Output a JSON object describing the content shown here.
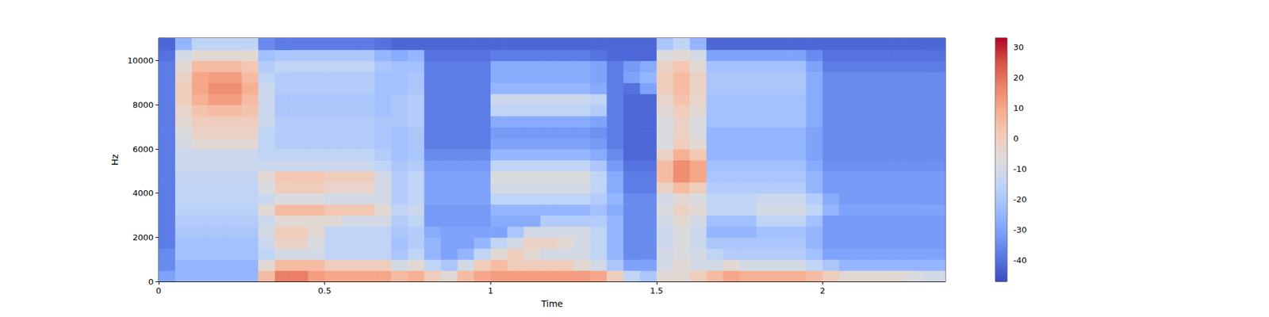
{
  "chart_data": {
    "type": "heatmap",
    "xlabel": "Time",
    "ylabel": "Hz",
    "xlim": [
      0,
      2.37
    ],
    "ylim": [
      0,
      11025
    ],
    "xticks": [
      0,
      0.5,
      1,
      1.5,
      2
    ],
    "yticks": [
      0,
      2000,
      4000,
      6000,
      8000,
      10000
    ],
    "time_edges": [
      0,
      0.05,
      0.1,
      0.15,
      0.2,
      0.25,
      0.3,
      0.35,
      0.4,
      0.45,
      0.5,
      0.55,
      0.6,
      0.65,
      0.7,
      0.75,
      0.8,
      0.85,
      0.9,
      0.95,
      1,
      1.05,
      1.1,
      1.15,
      1.2,
      1.25,
      1.3,
      1.35,
      1.4,
      1.45,
      1.5,
      1.55,
      1.6,
      1.65,
      1.7,
      1.75,
      1.8,
      1.85,
      1.9,
      1.95,
      2,
      2.05,
      2.1,
      2.15,
      2.2,
      2.25,
      2.3,
      2.37
    ],
    "freq_edges": [
      0,
      500,
      1000,
      1500,
      2000,
      2500,
      3000,
      3500,
      4000,
      4500,
      5000,
      5500,
      6000,
      6500,
      7000,
      7500,
      8000,
      8500,
      9000,
      9500,
      10000,
      10500,
      11025
    ],
    "cells": [
      [
        -30,
        -25,
        -25,
        -25,
        -25,
        -25,
        5,
        18,
        18,
        12,
        10,
        10,
        10,
        10,
        5,
        8,
        0,
        -5,
        5,
        10,
        12,
        12,
        12,
        12,
        12,
        12,
        10,
        0,
        -15,
        -20,
        -5,
        -5,
        0,
        5,
        10,
        8,
        8,
        8,
        8,
        5,
        0,
        -5,
        -5,
        -5,
        -5,
        -8,
        -10
      ],
      [
        -35,
        -25,
        -25,
        -25,
        -25,
        -25,
        -5,
        5,
        5,
        5,
        0,
        0,
        0,
        0,
        -10,
        -5,
        -15,
        -20,
        -10,
        0,
        5,
        0,
        0,
        0,
        0,
        -5,
        -10,
        -20,
        -30,
        -30,
        -10,
        -5,
        -10,
        -10,
        -5,
        -10,
        -10,
        -10,
        -10,
        -15,
        -20,
        -25,
        -25,
        -25,
        -25,
        -25,
        -25
      ],
      [
        -35,
        -22,
        -22,
        -22,
        -22,
        -22,
        -15,
        -10,
        -10,
        -10,
        -15,
        -15,
        -15,
        -15,
        -20,
        -15,
        -25,
        -30,
        -25,
        -15,
        -5,
        0,
        -5,
        -10,
        -10,
        -10,
        -15,
        -25,
        -35,
        -35,
        -10,
        -8,
        -10,
        -15,
        -18,
        -18,
        -18,
        -18,
        -18,
        -22,
        -30,
        -30,
        -30,
        -30,
        -30,
        -30,
        -30
      ],
      [
        -38,
        -22,
        -22,
        -22,
        -22,
        -22,
        -12,
        -2,
        -2,
        -8,
        -15,
        -15,
        -15,
        -15,
        -22,
        -18,
        -25,
        -30,
        -30,
        -25,
        -15,
        -10,
        -2,
        -2,
        -5,
        -10,
        -15,
        -25,
        -35,
        -35,
        -12,
        -8,
        -12,
        -20,
        -20,
        -20,
        -20,
        -20,
        -20,
        -25,
        -32,
        -32,
        -32,
        -32,
        -32,
        -32,
        -32
      ],
      [
        -38,
        -20,
        -20,
        -20,
        -20,
        -20,
        -10,
        0,
        0,
        -5,
        -15,
        -15,
        -15,
        -15,
        -20,
        -18,
        -28,
        -30,
        -30,
        -30,
        -30,
        -20,
        -10,
        -10,
        -10,
        -10,
        -15,
        -25,
        -35,
        -35,
        -12,
        -8,
        -12,
        -25,
        -25,
        -25,
        -22,
        -22,
        -22,
        -25,
        -32,
        -32,
        -32,
        -32,
        -32,
        -32,
        -32
      ],
      [
        -38,
        -18,
        -18,
        -18,
        -18,
        -18,
        -12,
        -5,
        -5,
        -5,
        -5,
        -10,
        -10,
        -10,
        -18,
        -15,
        -32,
        -32,
        -32,
        -32,
        -28,
        -28,
        -28,
        -18,
        -18,
        -18,
        -18,
        -25,
        -35,
        -35,
        -10,
        -5,
        -10,
        -22,
        -22,
        -22,
        -15,
        -15,
        -15,
        -22,
        -32,
        -32,
        -32,
        -32,
        -32,
        -32,
        -32
      ],
      [
        -38,
        -16,
        -16,
        -16,
        -16,
        -16,
        -5,
        5,
        5,
        5,
        2,
        2,
        2,
        -5,
        -15,
        -12,
        -32,
        -32,
        -32,
        -32,
        -25,
        -25,
        -25,
        -25,
        -25,
        -25,
        -22,
        -28,
        -35,
        -35,
        -8,
        -2,
        -5,
        -15,
        -15,
        -15,
        -10,
        -10,
        -10,
        -15,
        -25,
        -30,
        -30,
        -30,
        -30,
        -30,
        -30
      ],
      [
        -38,
        -15,
        -15,
        -15,
        -15,
        -15,
        -12,
        -8,
        -8,
        -8,
        -10,
        -10,
        -10,
        -10,
        -18,
        -15,
        -30,
        -30,
        -30,
        -30,
        -15,
        -15,
        -15,
        -15,
        -15,
        -15,
        -18,
        -25,
        -35,
        -35,
        -10,
        -5,
        -8,
        -15,
        -15,
        -15,
        -12,
        -12,
        -12,
        -18,
        -28,
        -32,
        -32,
        -32,
        -32,
        -32,
        -32
      ],
      [
        -38,
        -15,
        -15,
        -15,
        -15,
        -15,
        -8,
        0,
        0,
        0,
        -3,
        -3,
        -3,
        -10,
        -18,
        -15,
        -30,
        -30,
        -30,
        -30,
        -10,
        -10,
        -10,
        -10,
        -10,
        -10,
        -15,
        -28,
        -38,
        -38,
        -2,
        5,
        0,
        -18,
        -18,
        -18,
        -18,
        -18,
        -18,
        -25,
        -32,
        -32,
        -32,
        -32,
        -32,
        -32,
        -32
      ],
      [
        -38,
        -14,
        -14,
        -14,
        -14,
        -14,
        -5,
        2,
        2,
        2,
        0,
        0,
        0,
        -10,
        -18,
        -15,
        -30,
        -30,
        -30,
        -30,
        -8,
        -8,
        -8,
        -8,
        -8,
        -8,
        -15,
        -28,
        -38,
        -38,
        5,
        15,
        10,
        -20,
        -20,
        -20,
        -20,
        -20,
        -20,
        -25,
        -32,
        -32,
        -32,
        -32,
        -32,
        -32,
        -32
      ],
      [
        -38,
        -12,
        -12,
        -12,
        -12,
        -12,
        -12,
        -12,
        -12,
        -12,
        -12,
        -12,
        -12,
        -15,
        -20,
        -18,
        -32,
        -32,
        -32,
        -32,
        -15,
        -15,
        -15,
        -15,
        -15,
        -15,
        -20,
        -32,
        -40,
        -40,
        5,
        15,
        10,
        -22,
        -22,
        -22,
        -22,
        -22,
        -22,
        -28,
        -34,
        -34,
        -34,
        -34,
        -34,
        -34,
        -34
      ],
      [
        -38,
        -12,
        -12,
        -12,
        -12,
        -12,
        -15,
        -15,
        -15,
        -15,
        -15,
        -15,
        -15,
        -18,
        -22,
        -20,
        -35,
        -35,
        -35,
        -35,
        -25,
        -25,
        -25,
        -25,
        -25,
        -25,
        -28,
        -35,
        -42,
        -42,
        -2,
        8,
        2,
        -25,
        -25,
        -25,
        -25,
        -25,
        -25,
        -30,
        -35,
        -35,
        -35,
        -35,
        -35,
        -35,
        -35
      ],
      [
        -38,
        -10,
        -5,
        -5,
        -5,
        -5,
        -15,
        -18,
        -18,
        -18,
        -18,
        -18,
        -18,
        -20,
        -22,
        -20,
        -38,
        -38,
        -38,
        -38,
        -30,
        -30,
        -30,
        -30,
        -30,
        -30,
        -32,
        -38,
        -42,
        -42,
        -8,
        0,
        -5,
        -25,
        -25,
        -25,
        -25,
        -25,
        -25,
        -30,
        -35,
        -35,
        -35,
        -35,
        -35,
        -35,
        -35
      ],
      [
        -38,
        -8,
        -2,
        -2,
        -2,
        -2,
        -15,
        -18,
        -18,
        -18,
        -18,
        -18,
        -18,
        -20,
        -22,
        -20,
        -38,
        -38,
        -38,
        -38,
        -32,
        -32,
        -32,
        -32,
        -32,
        -32,
        -34,
        -38,
        -42,
        -42,
        -8,
        -2,
        -8,
        -25,
        -25,
        -25,
        -25,
        -25,
        -25,
        -30,
        -35,
        -35,
        -35,
        -35,
        -35,
        -35,
        -35
      ],
      [
        -38,
        -5,
        0,
        0,
        0,
        0,
        -12,
        -18,
        -18,
        -18,
        -18,
        -18,
        -18,
        -20,
        -20,
        -18,
        -38,
        -38,
        -38,
        -38,
        -28,
        -28,
        -28,
        -28,
        -28,
        -28,
        -30,
        -38,
        -42,
        -42,
        -8,
        -2,
        -8,
        -22,
        -22,
        -22,
        -22,
        -22,
        -22,
        -28,
        -35,
        -35,
        -35,
        -35,
        -35,
        -35,
        -35
      ],
      [
        -38,
        -3,
        3,
        5,
        5,
        3,
        -12,
        -20,
        -20,
        -20,
        -20,
        -20,
        -20,
        -22,
        -20,
        -18,
        -38,
        -38,
        -38,
        -38,
        -15,
        -15,
        -15,
        -15,
        -15,
        -15,
        -18,
        -38,
        -42,
        -42,
        -5,
        0,
        -5,
        -22,
        -22,
        -22,
        -22,
        -22,
        -22,
        -28,
        -35,
        -35,
        -35,
        -35,
        -35,
        -35,
        -35
      ],
      [
        -38,
        0,
        8,
        12,
        12,
        5,
        -12,
        -20,
        -20,
        -20,
        -20,
        -20,
        -20,
        -22,
        -20,
        -18,
        -38,
        -38,
        -38,
        -38,
        -12,
        -12,
        -12,
        -12,
        -12,
        -12,
        -15,
        -38,
        -42,
        -42,
        -3,
        3,
        -3,
        -22,
        -22,
        -22,
        -22,
        -22,
        -22,
        -28,
        -35,
        -35,
        -35,
        -35,
        -35,
        -35,
        -35
      ],
      [
        -38,
        0,
        10,
        15,
        15,
        8,
        -12,
        -18,
        -18,
        -18,
        -18,
        -18,
        -18,
        -22,
        -22,
        -20,
        -38,
        -38,
        -38,
        -38,
        -25,
        -25,
        -25,
        -25,
        -25,
        -25,
        -28,
        -38,
        -40,
        -30,
        0,
        5,
        -2,
        -20,
        -20,
        -20,
        -20,
        -20,
        -20,
        -28,
        -35,
        -35,
        -35,
        -35,
        -35,
        -35,
        -35
      ],
      [
        -38,
        -2,
        10,
        12,
        12,
        5,
        -15,
        -18,
        -18,
        -18,
        -18,
        -18,
        -18,
        -22,
        -22,
        -20,
        -38,
        -38,
        -38,
        -38,
        -28,
        -28,
        -28,
        -28,
        -28,
        -28,
        -30,
        -38,
        -30,
        -25,
        0,
        5,
        -2,
        -20,
        -20,
        -20,
        -20,
        -20,
        -20,
        -28,
        -35,
        -35,
        -35,
        -35,
        -35,
        -35,
        -35
      ],
      [
        -38,
        -5,
        5,
        5,
        5,
        2,
        -18,
        -15,
        -15,
        -15,
        -15,
        -15,
        -15,
        -20,
        -22,
        -22,
        -38,
        -38,
        -38,
        -38,
        -28,
        -28,
        -28,
        -28,
        -28,
        -28,
        -30,
        -38,
        -32,
        -28,
        -2,
        2,
        -5,
        -22,
        -22,
        -22,
        -22,
        -22,
        -22,
        -30,
        -38,
        -38,
        -38,
        -38,
        -38,
        -38,
        -38
      ],
      [
        -40,
        -10,
        -5,
        -5,
        -5,
        -5,
        -22,
        -20,
        -20,
        -20,
        -20,
        -20,
        -20,
        -25,
        -28,
        -25,
        -40,
        -40,
        -40,
        -40,
        -38,
        -38,
        -38,
        -38,
        -38,
        -38,
        -40,
        -42,
        -42,
        -42,
        -8,
        -5,
        -10,
        -30,
        -30,
        -30,
        -30,
        -30,
        -30,
        -35,
        -40,
        -40,
        -40,
        -40,
        -40,
        -40,
        -40
      ],
      [
        -42,
        -25,
        -15,
        -15,
        -15,
        -15,
        -35,
        -38,
        -38,
        -38,
        -38,
        -38,
        -38,
        -40,
        -42,
        -42,
        -42,
        -42,
        -42,
        -42,
        -42,
        -42,
        -42,
        -42,
        -42,
        -42,
        -42,
        -42,
        -42,
        -42,
        -20,
        -15,
        -25,
        -42,
        -42,
        -42,
        -42,
        -42,
        -42,
        -42,
        -42,
        -42,
        -42,
        -42,
        -42,
        -42,
        -42
      ]
    ],
    "clim": [
      -47,
      33
    ],
    "cticks": [
      -40,
      -30,
      -20,
      -10,
      0,
      10,
      20,
      30
    ]
  }
}
